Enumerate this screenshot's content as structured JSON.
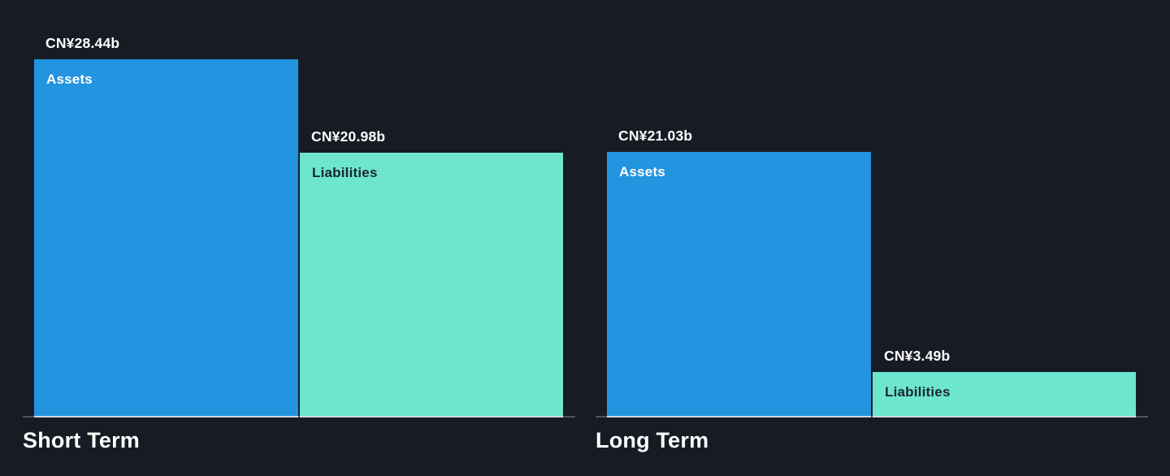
{
  "page": {
    "background_color": "#161b24",
    "currency_unit": "CN¥ billions"
  },
  "colors": {
    "assets_bar": "#2394df",
    "liabilities_bar": "#6ee6cf",
    "value_text": "#ffffff",
    "assets_label_text": "#ffffff",
    "liabilities_label_text": "#1b2733",
    "axis_line": "#4d565f",
    "bar_baseline": "#d3d6d9",
    "title_text": "#ffffff"
  },
  "chart_data": [
    {
      "type": "bar",
      "title": "Short Term",
      "categories": [
        "Assets",
        "Liabilities"
      ],
      "values": [
        28.44,
        20.98
      ],
      "value_labels": [
        "CN¥28.44b",
        "CN¥20.98b"
      ],
      "bar_colors": [
        "#2394df",
        "#6ee6cf"
      ],
      "bar_label_colors": [
        "#ffffff",
        "#1b2733"
      ],
      "xlabel": "",
      "ylabel": "",
      "ylim": [
        0,
        28.44
      ],
      "grid": false,
      "legend": false,
      "value_label_position": "above-bar",
      "category_label_position": "inside-bar-top-left"
    },
    {
      "type": "bar",
      "title": "Long Term",
      "categories": [
        "Assets",
        "Liabilities"
      ],
      "values": [
        21.03,
        3.49
      ],
      "value_labels": [
        "CN¥21.03b",
        "CN¥3.49b"
      ],
      "bar_colors": [
        "#2394df",
        "#6ee6cf"
      ],
      "bar_label_colors": [
        "#ffffff",
        "#1b2733"
      ],
      "xlabel": "",
      "ylabel": "",
      "ylim": [
        0,
        28.44
      ],
      "grid": false,
      "legend": false,
      "value_label_position": "above-bar",
      "category_label_position": "inside-bar-top-left"
    }
  ]
}
